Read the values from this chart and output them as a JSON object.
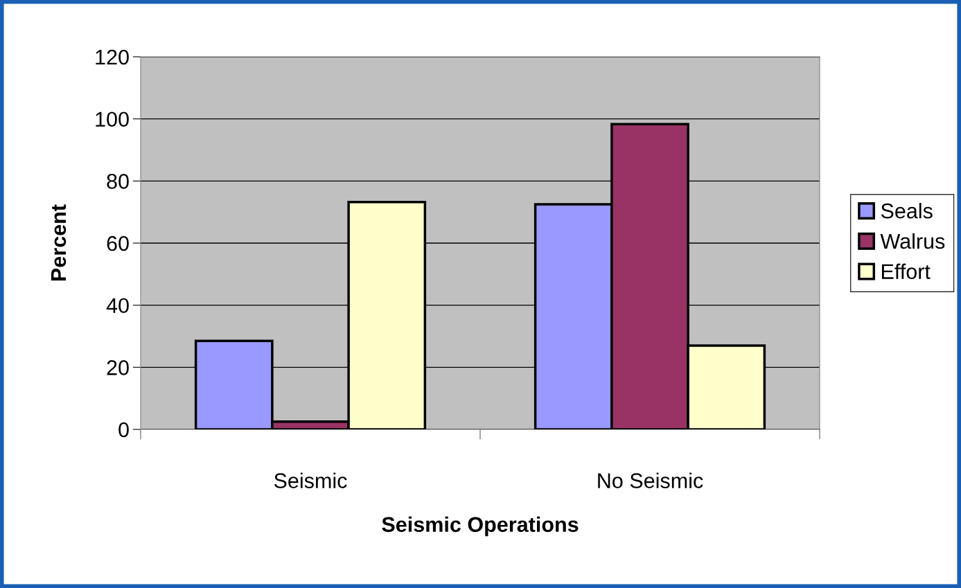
{
  "chart_data": {
    "type": "bar",
    "xlabel": "Seismic Operations",
    "ylabel": "Percent",
    "categories": [
      "Seismic",
      "No Seismic"
    ],
    "series": [
      {
        "name": "Seals",
        "color": "#9999ff",
        "values": [
          28.5,
          72.5
        ]
      },
      {
        "name": "Walrus",
        "color": "#993366",
        "values": [
          2.5,
          98.3
        ]
      },
      {
        "name": "Effort",
        "color": "#ffffcc",
        "values": [
          73.2,
          27
        ]
      }
    ],
    "ylim": [
      0,
      120
    ],
    "yticks": [
      0,
      20,
      40,
      60,
      80,
      100,
      120
    ],
    "grid": "y",
    "legend": "right"
  }
}
